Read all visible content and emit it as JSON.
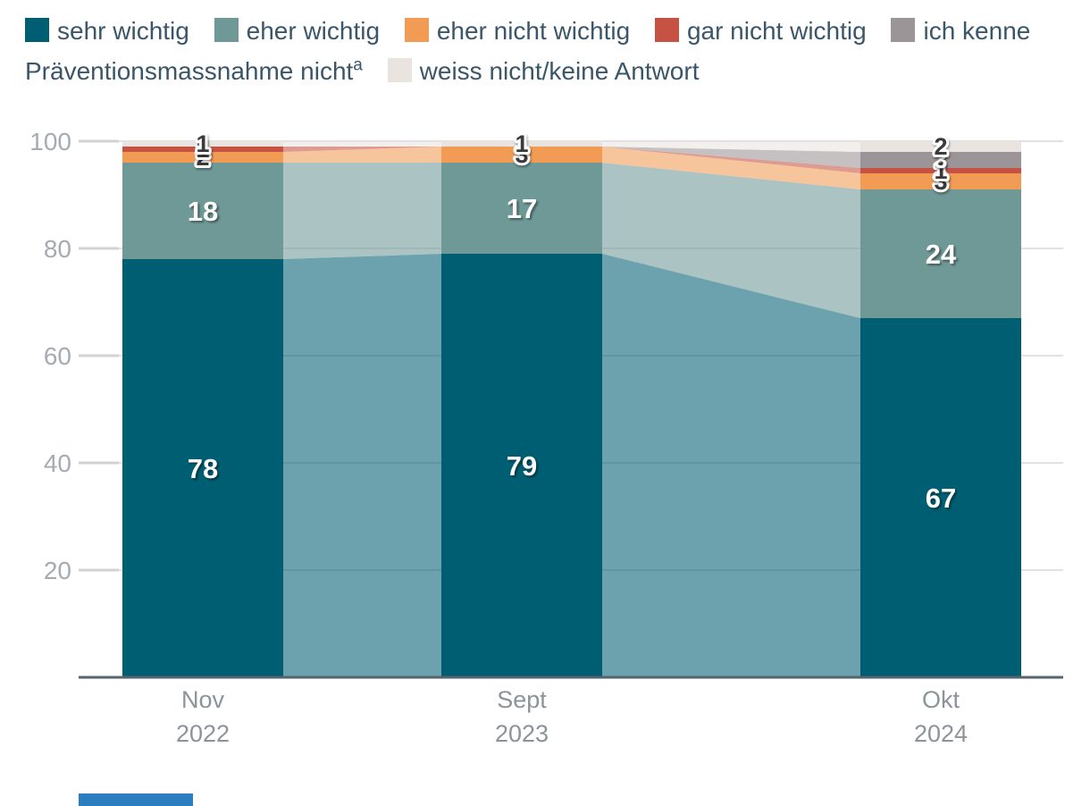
{
  "legend": {
    "text_color": "#3a5669",
    "items": [
      {
        "label": "sehr wichtig",
        "color": "#005e72"
      },
      {
        "label": "eher wichtig",
        "color": "#6f9997"
      },
      {
        "label": "eher nicht wichtig",
        "color": "#f29b55"
      },
      {
        "label": "gar nicht wichtig",
        "color": "#c65243"
      },
      {
        "label": "ich kenne Präventionsmassnahme nicht",
        "sup": "a",
        "color": "#9b9598"
      },
      {
        "label": "weiss nicht/keine Antwort",
        "color": "#e9e4e0"
      }
    ]
  },
  "chart_data": {
    "type": "stacked-bar-with-flows",
    "title": "",
    "xlabel": "",
    "ylabel": "",
    "ylim": [
      0,
      100
    ],
    "yticks": [
      20,
      40,
      60,
      80,
      100
    ],
    "grid": true,
    "legend_position": "top",
    "categories": [
      {
        "month": "Nov",
        "year": "2022"
      },
      {
        "month": "Sept",
        "year": "2023"
      },
      {
        "month": "Okt",
        "year": "2024"
      }
    ],
    "series": [
      {
        "name": "sehr wichtig",
        "color": "#005e72",
        "values": [
          78,
          79,
          67
        ],
        "label_style": "big-white"
      },
      {
        "name": "eher wichtig",
        "color": "#6f9997",
        "values": [
          18,
          17,
          24
        ],
        "label_style": "big-white"
      },
      {
        "name": "eher nicht wichtig",
        "color": "#f29b55",
        "values": [
          2,
          3,
          3
        ],
        "label_style": "small-dark"
      },
      {
        "name": "gar nicht wichtig",
        "color": "#c65243",
        "values": [
          1,
          0,
          1
        ],
        "label_style": "small-dark"
      },
      {
        "name": "ich kenne Präventionsmassnahme nicht",
        "color": "#9b9598",
        "values": [
          0,
          0,
          3
        ],
        "label_style": "small-light"
      },
      {
        "name": "weiss nicht/keine Antwort",
        "color": "#e9e4e0",
        "values": [
          1,
          1,
          2
        ],
        "label_style": "small-dark"
      }
    ],
    "flow_opacity": 0.58,
    "axis": {
      "baseline_color": "#55646d",
      "gridline_color": "#e3e1e1",
      "tick_stub_color": "#d2d2d2",
      "tick_label_color": "#a4abb2",
      "category_label_color": "#8b939b"
    }
  },
  "footer": {
    "bar_color": "#2b7dc0"
  }
}
